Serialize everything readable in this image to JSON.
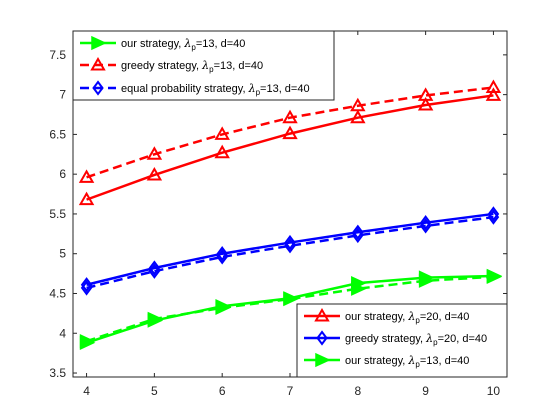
{
  "chart_data": {
    "type": "line",
    "x": [
      4,
      5,
      6,
      7,
      8,
      9,
      10
    ],
    "xlim": [
      3.8,
      10.2
    ],
    "ylim": [
      3.45,
      7.8
    ],
    "xticks": [
      4,
      5,
      6,
      7,
      8,
      9,
      10
    ],
    "yticks": [
      3.5,
      4,
      4.5,
      5,
      5.5,
      6,
      6.5,
      7,
      7.5
    ],
    "ytick_labels": [
      "3.5",
      "4",
      "4.5",
      "5",
      "5.5",
      "6",
      "6.5",
      "7",
      "7.5"
    ],
    "grid": false,
    "series": [
      {
        "id": "red_solid",
        "values": [
          5.68,
          5.99,
          6.27,
          6.51,
          6.71,
          6.87,
          6.99
        ],
        "color": "#ff0000",
        "style": "solid",
        "marker": "triangle"
      },
      {
        "id": "red_dash",
        "values": [
          5.96,
          6.25,
          6.5,
          6.71,
          6.86,
          6.99,
          7.09
        ],
        "color": "#ff0000",
        "style": "dashed",
        "marker": "triangle"
      },
      {
        "id": "blue_solid",
        "values": [
          4.61,
          4.82,
          5.0,
          5.14,
          5.27,
          5.39,
          5.5
        ],
        "color": "#0000ff",
        "style": "solid",
        "marker": "diamond"
      },
      {
        "id": "blue_dash",
        "values": [
          4.57,
          4.78,
          4.96,
          5.1,
          5.23,
          5.35,
          5.46
        ],
        "color": "#0000ff",
        "style": "dashed",
        "marker": "diamond"
      },
      {
        "id": "green_solid",
        "values": [
          3.88,
          4.16,
          4.34,
          4.44,
          4.63,
          4.7,
          4.72
        ],
        "color": "#00ff00",
        "style": "solid",
        "marker": "arrow"
      },
      {
        "id": "green_dash",
        "values": [
          3.9,
          4.18,
          4.32,
          4.43,
          4.56,
          4.66,
          4.71
        ],
        "color": "#00ff00",
        "style": "dashed",
        "marker": "arrow"
      }
    ],
    "legends": [
      {
        "position": "top-left",
        "entries": [
          {
            "name": "our strategy, ",
            "sub": "p",
            "tail": "=13, d=40",
            "color": "#00ff00",
            "style": "solid",
            "marker": "arrow"
          },
          {
            "name": "greedy strategy, ",
            "sub": "p",
            "tail": "=13, d=40",
            "color": "#ff0000",
            "style": "dashed",
            "marker": "triangle"
          },
          {
            "name": "equal probability strategy, ",
            "sub": "p",
            "tail": "=13, d=40",
            "color": "#0000ff",
            "style": "dashed",
            "marker": "diamond"
          }
        ]
      },
      {
        "position": "bottom-right",
        "entries": [
          {
            "name": "our strategy, ",
            "sub": "p",
            "tail": "=20, d=40",
            "color": "#ff0000",
            "style": "solid",
            "marker": "triangle"
          },
          {
            "name": "greedy strategy, ",
            "sub": "p",
            "tail": "=20, d=40",
            "color": "#0000ff",
            "style": "solid",
            "marker": "diamond"
          },
          {
            "name": "our strategy, ",
            "sub": "p",
            "tail": "=13, d=40",
            "color": "#00ff00",
            "style": "solid",
            "marker": "arrow"
          }
        ]
      }
    ]
  }
}
